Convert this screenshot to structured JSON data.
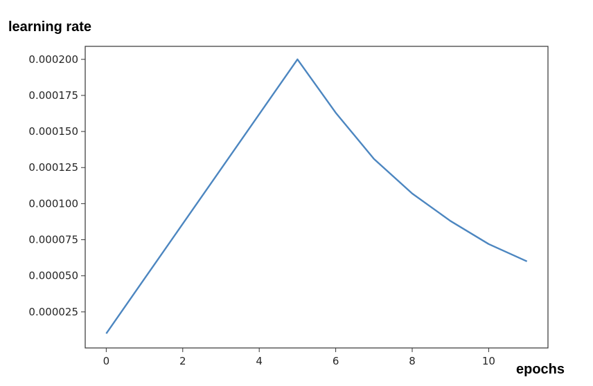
{
  "chart_data": {
    "type": "line",
    "title": "",
    "ylabel": "learning rate",
    "xlabel": "epochs",
    "xlim": [
      -0.55,
      11.55
    ],
    "ylim": [
      0.0,
      0.000209
    ],
    "xticks": [
      0,
      2,
      4,
      6,
      8,
      10
    ],
    "yticks": [
      2.5e-05,
      5e-05,
      7.5e-05,
      0.0001,
      0.000125,
      0.00015,
      0.000175,
      0.0002
    ],
    "ytick_labels": [
      "0.000025",
      "0.000050",
      "0.000075",
      "0.000100",
      "0.000125",
      "0.000150",
      "0.000175",
      "0.000200"
    ],
    "grid": false,
    "line_color": "#4c86c0",
    "series": [
      {
        "x": [
          0,
          1,
          2,
          3,
          4,
          5,
          6,
          7,
          8,
          9,
          10,
          11
        ],
        "values": [
          1e-05,
          4.8e-05,
          8.6e-05,
          0.000124,
          0.000162,
          0.0002,
          0.000163,
          0.000131,
          0.000107,
          8.8e-05,
          7.2e-05,
          6e-05
        ]
      }
    ]
  }
}
